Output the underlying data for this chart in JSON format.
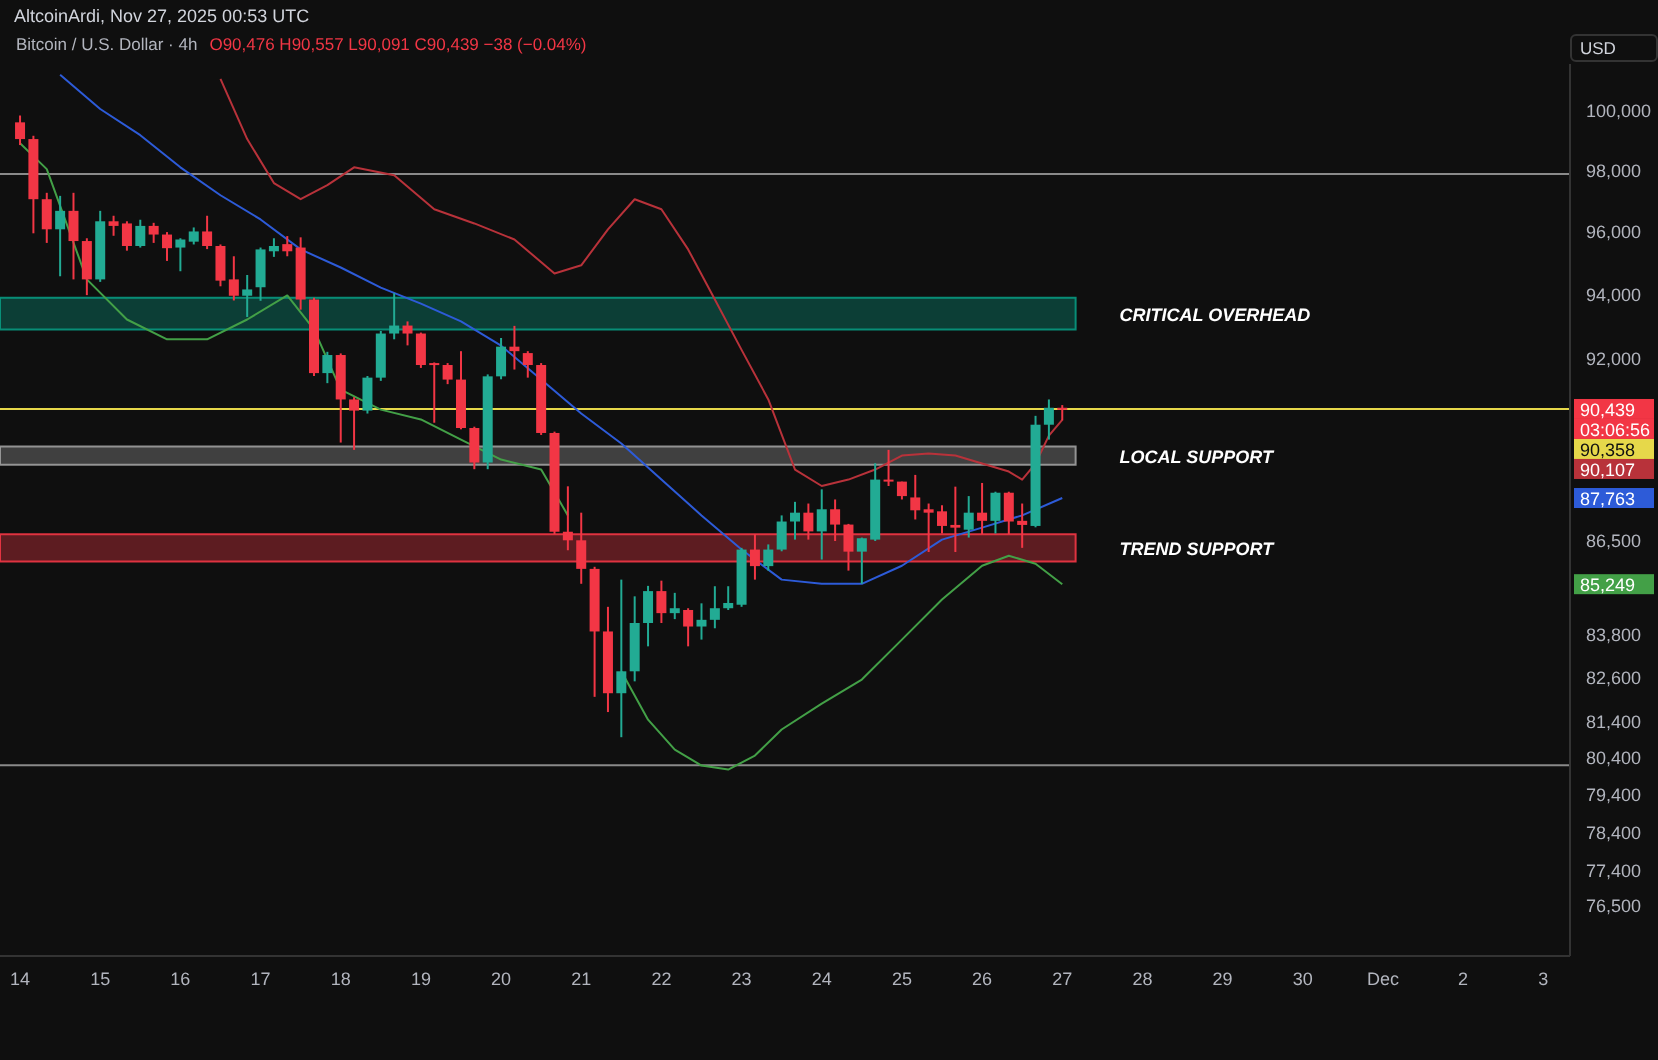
{
  "chart_data": {
    "type": "candlestick",
    "title": "Bitcoin / U.S. Dollar · 4h",
    "subtitle": "O90,476 H90,557 L90,091 C90,439 −38 (−0.04%)",
    "ylabel": "USD",
    "log": true,
    "x": [
      "2025-11-14T00:00",
      "2025-11-14T04:00",
      "2025-11-14T08:00",
      "2025-11-14T12:00",
      "2025-11-14T16:00",
      "2025-11-14T20:00",
      "2025-11-15T00:00",
      "2025-11-15T04:00",
      "2025-11-15T08:00",
      "2025-11-15T12:00",
      "2025-11-15T16:00",
      "2025-11-15T20:00",
      "2025-11-16T00:00",
      "2025-11-16T04:00",
      "2025-11-16T08:00",
      "2025-11-16T12:00",
      "2025-11-16T16:00",
      "2025-11-16T20:00",
      "2025-11-17T00:00",
      "2025-11-17T04:00",
      "2025-11-17T08:00",
      "2025-11-17T12:00",
      "2025-11-17T16:00",
      "2025-11-17T20:00",
      "2025-11-18T00:00",
      "2025-11-18T04:00",
      "2025-11-18T08:00",
      "2025-11-18T12:00",
      "2025-11-18T16:00",
      "2025-11-18T20:00",
      "2025-11-19T00:00",
      "2025-11-19T04:00",
      "2025-11-19T08:00",
      "2025-11-19T12:00",
      "2025-11-19T16:00",
      "2025-11-19T20:00",
      "2025-11-20T00:00",
      "2025-11-20T04:00",
      "2025-11-20T08:00",
      "2025-11-20T12:00",
      "2025-11-20T16:00",
      "2025-11-20T20:00",
      "2025-11-21T00:00",
      "2025-11-21T04:00",
      "2025-11-21T08:00",
      "2025-11-21T12:00",
      "2025-11-21T16:00",
      "2025-11-21T20:00",
      "2025-11-22T00:00",
      "2025-11-22T04:00",
      "2025-11-22T08:00",
      "2025-11-22T12:00",
      "2025-11-22T16:00",
      "2025-11-22T20:00",
      "2025-11-23T00:00",
      "2025-11-23T04:00",
      "2025-11-23T08:00",
      "2025-11-23T12:00",
      "2025-11-23T16:00",
      "2025-11-23T20:00",
      "2025-11-24T00:00",
      "2025-11-24T04:00",
      "2025-11-24T08:00",
      "2025-11-24T12:00",
      "2025-11-24T16:00",
      "2025-11-24T20:00",
      "2025-11-25T00:00",
      "2025-11-25T04:00",
      "2025-11-25T08:00",
      "2025-11-25T12:00",
      "2025-11-25T16:00",
      "2025-11-25T20:00",
      "2025-11-26T00:00",
      "2025-11-26T04:00",
      "2025-11-26T08:00",
      "2025-11-26T12:00",
      "2025-11-26T16:00",
      "2025-11-26T20:00",
      "2025-11-27T00:00"
    ],
    "ohlc": [
      [
        99620,
        99850,
        98860,
        99060
      ],
      [
        99060,
        99170,
        95960,
        97070
      ],
      [
        97070,
        97280,
        95650,
        96090
      ],
      [
        96090,
        97180,
        94580,
        96690
      ],
      [
        96690,
        97280,
        94480,
        95710
      ],
      [
        95710,
        95800,
        93980,
        94480
      ],
      [
        94480,
        96690,
        94400,
        96350
      ],
      [
        96350,
        96530,
        95880,
        96200
      ],
      [
        96280,
        96350,
        95400,
        95550
      ],
      [
        95550,
        96400,
        95500,
        96200
      ],
      [
        96200,
        96300,
        95650,
        95920
      ],
      [
        95920,
        96000,
        95070,
        95480
      ],
      [
        95500,
        95800,
        94740,
        95760
      ],
      [
        95690,
        96150,
        95600,
        96020
      ],
      [
        96020,
        96530,
        95450,
        95550
      ],
      [
        95550,
        95600,
        94260,
        94440
      ],
      [
        94480,
        95220,
        93810,
        93960
      ],
      [
        93960,
        94620,
        93290,
        94160
      ],
      [
        94230,
        95500,
        93800,
        95440
      ],
      [
        95380,
        95800,
        95200,
        95550
      ],
      [
        95610,
        95870,
        95220,
        95380
      ],
      [
        95500,
        95830,
        93520,
        93840
      ],
      [
        93840,
        93900,
        91450,
        91540
      ],
      [
        91540,
        92200,
        91230,
        92100
      ],
      [
        92100,
        92150,
        89420,
        90730
      ],
      [
        90730,
        90800,
        89200,
        90390
      ],
      [
        90390,
        91450,
        90300,
        91400
      ],
      [
        91400,
        92850,
        91300,
        92770
      ],
      [
        92770,
        94040,
        92590,
        93020
      ],
      [
        93020,
        93150,
        92400,
        92770
      ],
      [
        92770,
        92800,
        91700,
        91790
      ],
      [
        91850,
        91870,
        90020,
        91790
      ],
      [
        91790,
        91850,
        91200,
        91340
      ],
      [
        91340,
        92220,
        89820,
        89860
      ],
      [
        89860,
        89900,
        88620,
        88820
      ],
      [
        88820,
        91500,
        88620,
        91440
      ],
      [
        91440,
        92630,
        91350,
        92360
      ],
      [
        92360,
        93010,
        91650,
        92220
      ],
      [
        92160,
        92220,
        91400,
        91790
      ],
      [
        91790,
        91850,
        89650,
        89710
      ],
      [
        89710,
        89750,
        86700,
        86770
      ],
      [
        86770,
        88110,
        86230,
        86520
      ],
      [
        86520,
        87330,
        85260,
        85690
      ],
      [
        85690,
        85750,
        82070,
        83900
      ],
      [
        83900,
        84600,
        81650,
        82170
      ],
      [
        82170,
        85380,
        80960,
        82780
      ],
      [
        82780,
        84900,
        82500,
        84140
      ],
      [
        84140,
        85200,
        83480,
        85050
      ],
      [
        85050,
        85350,
        84140,
        84420
      ],
      [
        84420,
        85000,
        84250,
        84560
      ],
      [
        84510,
        84560,
        83480,
        84040
      ],
      [
        84040,
        84700,
        83670,
        84230
      ],
      [
        84230,
        85190,
        83990,
        84560
      ],
      [
        84560,
        85190,
        84510,
        84710
      ],
      [
        84660,
        86300,
        84600,
        86250
      ],
      [
        86250,
        86700,
        85380,
        85770
      ],
      [
        85770,
        86400,
        85640,
        86250
      ],
      [
        86250,
        87250,
        86200,
        87070
      ],
      [
        87070,
        87650,
        86540,
        87330
      ],
      [
        87330,
        87600,
        86540,
        86780
      ],
      [
        86780,
        88020,
        85960,
        87430
      ],
      [
        87430,
        87720,
        86500,
        86980
      ],
      [
        86980,
        87000,
        85640,
        86190
      ],
      [
        86190,
        86600,
        85260,
        86580
      ],
      [
        86540,
        88800,
        86500,
        88310
      ],
      [
        88310,
        89200,
        88120,
        88250
      ],
      [
        88250,
        88250,
        87720,
        87820
      ],
      [
        87780,
        88450,
        87130,
        87400
      ],
      [
        87430,
        87600,
        86180,
        87330
      ],
      [
        87370,
        87550,
        86720,
        86940
      ],
      [
        86970,
        88100,
        86180,
        86890
      ],
      [
        86830,
        87820,
        86600,
        87330
      ],
      [
        87330,
        88210,
        86700,
        87090
      ],
      [
        87090,
        87950,
        86720,
        87920
      ],
      [
        87920,
        87950,
        86700,
        87070
      ],
      [
        87090,
        87600,
        86300,
        86970
      ],
      [
        86940,
        90230,
        86900,
        89960
      ],
      [
        89960,
        90730,
        89510,
        90476
      ],
      [
        90476,
        90557,
        90091,
        90439
      ]
    ],
    "series": [
      {
        "type": "line",
        "color": "#b8323a",
        "x": [
          "2025-11-16T12:00",
          "2025-11-16T20:00",
          "2025-11-17T04:00",
          "2025-11-17T12:00",
          "2025-11-17T20:00",
          "2025-11-18T04:00",
          "2025-11-18T16:00",
          "2025-11-19T04:00",
          "2025-11-19T16:00",
          "2025-11-20T04:00",
          "2025-11-20T16:00",
          "2025-11-21T00:00",
          "2025-11-21T08:00",
          "2025-11-21T16:00",
          "2025-11-22T00:00",
          "2025-11-22T08:00",
          "2025-11-22T16:00",
          "2025-11-23T00:00",
          "2025-11-23T08:00",
          "2025-11-23T16:00",
          "2025-11-24T00:00",
          "2025-11-24T08:00",
          "2025-11-24T16:00",
          "2025-11-25T00:00",
          "2025-11-25T08:00",
          "2025-11-25T16:00",
          "2025-11-26T00:00",
          "2025-11-26T08:00",
          "2025-11-26T12:00",
          "2025-11-26T16:00",
          "2025-11-26T20:00",
          "2025-11-27T00:00"
        ],
        "values": [
          101090,
          99060,
          97600,
          97070,
          97530,
          98120,
          97860,
          96740,
          96280,
          95760,
          94670,
          94930,
          96090,
          97070,
          96740,
          95440,
          93840,
          92260,
          90730,
          88610,
          88120,
          88310,
          88610,
          89030,
          89090,
          89030,
          88790,
          88550,
          88310,
          88790,
          89630,
          90107
        ]
      },
      {
        "type": "line",
        "color": "#2d5bd8",
        "x": [
          "2025-11-14T12:00",
          "2025-11-15T00:00",
          "2025-11-15T12:00",
          "2025-11-16T00:00",
          "2025-11-16T12:00",
          "2025-11-17T00:00",
          "2025-11-17T12:00",
          "2025-11-18T00:00",
          "2025-11-18T12:00",
          "2025-11-19T00:00",
          "2025-11-19T12:00",
          "2025-11-20T00:00",
          "2025-11-20T12:00",
          "2025-11-21T00:00",
          "2025-11-21T12:00",
          "2025-11-22T00:00",
          "2025-11-22T12:00",
          "2025-11-23T00:00",
          "2025-11-23T12:00",
          "2025-11-24T00:00",
          "2025-11-24T12:00",
          "2025-11-25T00:00",
          "2025-11-25T12:00",
          "2025-11-26T00:00",
          "2025-11-26T12:00",
          "2025-11-27T00:00"
        ],
        "values": [
          101230,
          100070,
          99190,
          98120,
          97200,
          96410,
          95440,
          94860,
          94220,
          93710,
          93150,
          92390,
          91340,
          90300,
          89390,
          88310,
          87250,
          86250,
          85380,
          85260,
          85260,
          85780,
          86540,
          86890,
          87250,
          87763
        ]
      },
      {
        "type": "line",
        "color": "#43a047",
        "x": [
          "2025-11-14T00:00",
          "2025-11-14T08:00",
          "2025-11-14T20:00",
          "2025-11-15T08:00",
          "2025-11-15T20:00",
          "2025-11-16T08:00",
          "2025-11-16T20:00",
          "2025-11-17T08:00",
          "2025-11-17T16:00",
          "2025-11-18T00:00",
          "2025-11-18T12:00",
          "2025-11-19T00:00",
          "2025-11-19T12:00",
          "2025-11-20T00:00",
          "2025-11-20T12:00",
          "2025-11-20T20:00",
          "2025-11-21T04:00",
          "2025-11-21T12:00",
          "2025-11-21T20:00",
          "2025-11-22T04:00",
          "2025-11-22T12:00",
          "2025-11-22T20:00",
          "2025-11-23T04:00",
          "2025-11-23T12:00",
          "2025-11-24T00:00",
          "2025-11-24T12:00",
          "2025-11-25T00:00",
          "2025-11-25T12:00",
          "2025-11-26T00:00",
          "2025-11-26T08:00",
          "2025-11-26T16:00",
          "2025-11-27T00:00"
        ],
        "values": [
          98920,
          98060,
          94480,
          93210,
          92590,
          92590,
          93210,
          93970,
          92900,
          91030,
          90420,
          90120,
          89510,
          88910,
          88610,
          87250,
          null,
          82780,
          81440,
          80620,
          80190,
          80080,
          80460,
          81170,
          81880,
          82550,
          83670,
          84810,
          85780,
          86070,
          85840,
          85249
        ]
      }
    ],
    "xlim": [
      "2025-11-13T18:00",
      "2025-12-03T08:00"
    ],
    "xticks": [
      {
        "value": "2025-11-14",
        "label": "14"
      },
      {
        "value": "2025-11-15",
        "label": "15"
      },
      {
        "value": "2025-11-16",
        "label": "16"
      },
      {
        "value": "2025-11-17",
        "label": "17"
      },
      {
        "value": "2025-11-18",
        "label": "18"
      },
      {
        "value": "2025-11-19",
        "label": "19"
      },
      {
        "value": "2025-11-20",
        "label": "20"
      },
      {
        "value": "2025-11-21",
        "label": "21"
      },
      {
        "value": "2025-11-22",
        "label": "22"
      },
      {
        "value": "2025-11-23",
        "label": "23"
      },
      {
        "value": "2025-11-24",
        "label": "24"
      },
      {
        "value": "2025-11-25",
        "label": "25"
      },
      {
        "value": "2025-11-26",
        "label": "26"
      },
      {
        "value": "2025-11-27",
        "label": "27"
      },
      {
        "value": "2025-11-28",
        "label": "28"
      },
      {
        "value": "2025-11-29",
        "label": "29"
      },
      {
        "value": "2025-11-30",
        "label": "30"
      },
      {
        "value": "2025-12-01",
        "label": "Dec"
      },
      {
        "value": "2025-12-02",
        "label": "2"
      },
      {
        "value": "2025-12-03",
        "label": "3"
      }
    ],
    "ylim": [
      75200,
      101600
    ],
    "yticks": [
      {
        "value": 100000,
        "label": "100,000"
      },
      {
        "value": 98000,
        "label": "98,000"
      },
      {
        "value": 96000,
        "label": "96,000"
      },
      {
        "value": 94000,
        "label": "94,000"
      },
      {
        "value": 92000,
        "label": "92,000"
      },
      {
        "value": 86500,
        "label": "86,500"
      },
      {
        "value": 83800,
        "label": "83,800"
      },
      {
        "value": 82600,
        "label": "82,600"
      },
      {
        "value": 81400,
        "label": "81,400"
      },
      {
        "value": 80400,
        "label": "80,400"
      },
      {
        "value": 79400,
        "label": "79,400"
      },
      {
        "value": 78400,
        "label": "78,400"
      },
      {
        "value": 77400,
        "label": "77,400"
      },
      {
        "value": 76500,
        "label": "76,500"
      }
    ],
    "ref_lines": [
      {
        "axis": "y",
        "value": 97900,
        "color": "#8a8a8a"
      },
      {
        "axis": "y",
        "value": 80200,
        "color": "#8a8a8a"
      },
      {
        "axis": "y",
        "value": 90439,
        "label": "90,439",
        "color": "#e6d84a"
      }
    ],
    "bands": [
      {
        "axis": "y",
        "from": 92900,
        "to": 93900,
        "label": "CRITICAL OVERHEAD",
        "color": "#089981"
      },
      {
        "axis": "y",
        "from": 88750,
        "to": 89300,
        "label": "LOCAL SUPPORT",
        "color": "#9e9e9e"
      },
      {
        "axis": "y",
        "from": 85900,
        "to": 86700,
        "label": "TREND SUPPORT",
        "color": "#f23645"
      }
    ],
    "annotations": [
      "AltcoinArdi, Nov 27, 2025 00:53 UTC",
      "03:06:56",
      "90,358",
      "90,107",
      "87,763",
      "85,249"
    ]
  }
}
